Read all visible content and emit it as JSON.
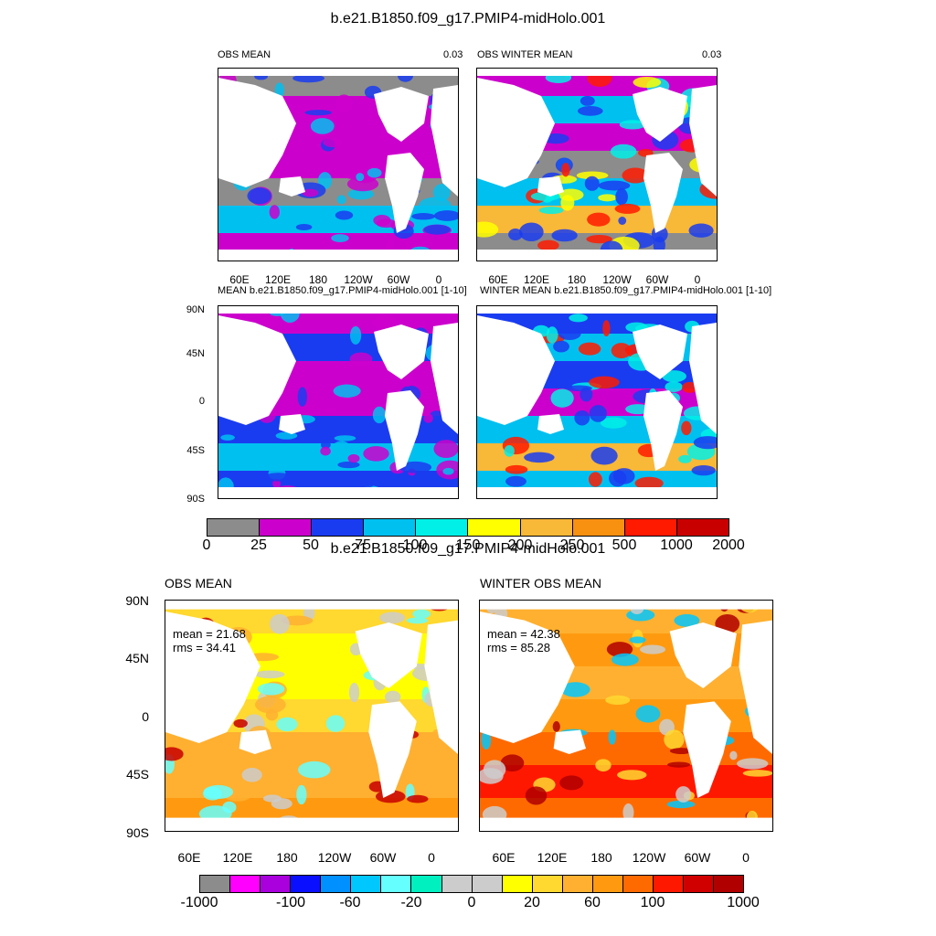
{
  "figure": {
    "top_title": "b.e21.B1850.f09_g17.PMIP4-midHolo.001",
    "bottom_title": "b.e21.B1850.f09_g17.PMIP4-midHolo.001"
  },
  "top_panels": [
    {
      "title": "OBS MEAN",
      "value": "0.03"
    },
    {
      "title": "OBS WINTER MEAN",
      "value": "0.03"
    },
    {
      "title": "MEAN b.e21.B1850.f09_g17.PMIP4-midHolo.001 [1-10]",
      "value": ""
    },
    {
      "title": "WINTER MEAN b.e21.B1850.f09_g17.PMIP4-midHolo.001 [1-10]",
      "value": ""
    }
  ],
  "bottom_panels": [
    {
      "title": "OBS MEAN",
      "mean": "mean = 21.68",
      "rms": "rms = 34.41"
    },
    {
      "title": "WINTER OBS MEAN",
      "mean": "mean = 42.38",
      "rms": "rms = 85.28"
    }
  ],
  "lon_labels": [
    "60E",
    "120E",
    "180",
    "120W",
    "60W",
    "0"
  ],
  "lat_labels": [
    "90N",
    "45N",
    "0",
    "45S",
    "90S"
  ],
  "colorbar_top": {
    "colors": [
      "#8c8c8c",
      "#cc00cc",
      "#1a3cf0",
      "#00c0f0",
      "#00f0e8",
      "#ffff00",
      "#f8b838",
      "#f89010",
      "#ff1a00",
      "#c80000"
    ],
    "labels": [
      "0",
      "25",
      "50",
      "75",
      "100",
      "150",
      "200",
      "250",
      "500",
      "1000",
      "2000"
    ]
  },
  "colorbar_bottom": {
    "colors": [
      "#8c8c8c",
      "#ff00ff",
      "#aa00dd",
      "#0a10ff",
      "#0090ff",
      "#00c8ff",
      "#66ffff",
      "#00f0c0",
      "#cccccc",
      "#cccccc",
      "#ffff00",
      "#ffd830",
      "#ffb030",
      "#ff9a10",
      "#ff6a00",
      "#ff1800",
      "#d00000",
      "#b00000"
    ],
    "labels": [
      "-1000",
      "-100",
      "-60",
      "-20",
      "0",
      "20",
      "60",
      "100",
      "1000"
    ]
  }
}
